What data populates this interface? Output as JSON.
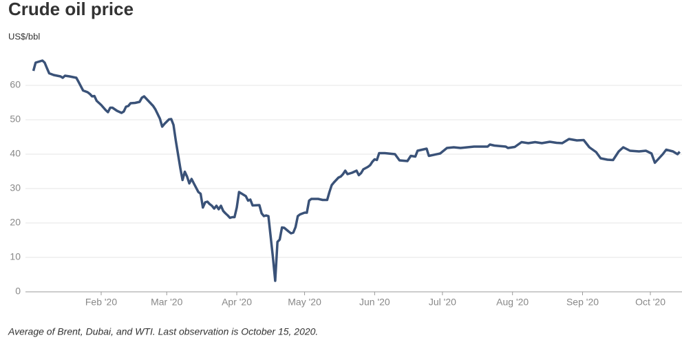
{
  "chart_data": {
    "type": "line",
    "title": "Crude oil price",
    "y_axis_label": "US$/bbl",
    "note": "Average of Brent, Dubai, and WTI. Last observation is October 15, 2020.",
    "x": [
      1,
      2,
      5,
      6,
      7,
      8,
      10,
      13,
      14,
      15,
      17,
      20,
      21,
      23,
      25,
      26,
      27,
      28,
      29,
      31,
      33,
      34,
      35,
      36,
      38,
      40,
      41,
      42,
      43,
      44,
      46,
      48,
      49,
      50,
      52,
      54,
      55,
      57,
      58,
      59,
      61,
      62,
      63,
      64,
      66,
      67,
      68,
      69,
      70,
      71,
      72,
      74,
      75,
      76,
      77,
      78,
      79,
      80,
      81,
      82,
      83,
      84,
      85,
      86,
      87,
      88,
      89,
      90,
      91,
      92,
      94,
      95,
      96,
      97,
      98,
      101,
      102,
      103,
      104,
      105,
      107,
      108,
      109,
      110,
      111,
      112,
      114,
      115,
      116,
      117,
      118,
      119,
      121,
      122,
      123,
      124,
      126,
      127,
      129,
      131,
      132,
      133,
      134,
      135,
      136,
      137,
      138,
      139,
      140,
      142,
      143,
      144,
      145,
      146,
      147,
      149,
      150,
      151,
      152,
      153,
      154,
      156.5,
      161,
      163,
      166.5,
      168,
      170,
      171,
      175,
      176,
      181,
      184,
      187,
      190,
      196,
      202,
      203,
      205,
      210,
      211,
      214,
      217,
      220,
      223,
      226,
      229.5,
      232.5,
      235,
      238,
      241.5,
      244.5,
      247,
      250,
      252,
      255,
      257.5,
      260,
      262,
      265,
      269,
      272,
      274.5,
      276,
      279.5,
      281,
      284,
      286,
      287
    ],
    "series": [
      {
        "name": "Crude oil price",
        "color": "#3a5278",
        "values": [
          64.2,
          66.6,
          67.2,
          66.6,
          65,
          63.5,
          63,
          62.6,
          62.2,
          62.8,
          62.6,
          62.2,
          61,
          58.5,
          58,
          57.5,
          56.8,
          56.9,
          55.5,
          54.3,
          52.8,
          52.2,
          53.5,
          53.5,
          52.6,
          52,
          52.4,
          53.8,
          54,
          54.8,
          54.9,
          55.2,
          56.4,
          56.8,
          55.4,
          54,
          53,
          50.3,
          48,
          48.8,
          50.1,
          50.2,
          48.5,
          44,
          36,
          32.5,
          34.9,
          33.5,
          31.5,
          32.8,
          31.5,
          29,
          28.5,
          24.5,
          26,
          26.2,
          25.5,
          25,
          24.2,
          25,
          24,
          25,
          23.5,
          22.8,
          22.2,
          21.5,
          21.7,
          21.7,
          24.5,
          29,
          28.2,
          27.8,
          26.5,
          26.8,
          25.1,
          25.2,
          22.8,
          22,
          22.2,
          22,
          10,
          3.2,
          14.5,
          15.2,
          18.7,
          18.6,
          17.5,
          17,
          17.2,
          18.8,
          22,
          22.5,
          23,
          23,
          26.5,
          27,
          27,
          27,
          26.7,
          26.7,
          29,
          31,
          31.8,
          32.5,
          33.2,
          33.5,
          34.2,
          35.2,
          34.2,
          34.6,
          34.9,
          35.2,
          33.9,
          34.5,
          35.6,
          36.3,
          36.8,
          37.8,
          38.5,
          38.3,
          40.3,
          40.3,
          40,
          38.2,
          38,
          39.5,
          39.3,
          41,
          41.6,
          39.5,
          40.2,
          41.8,
          42,
          41.8,
          42.2,
          42.2,
          42.8,
          42.5,
          42.2,
          41.8,
          42.1,
          43.5,
          43.2,
          43.5,
          43.2,
          43.6,
          43.3,
          43.2,
          44.4,
          44,
          44.1,
          42,
          40.6,
          38.8,
          38.4,
          38.3,
          40.8,
          42,
          41,
          40.8,
          41,
          40.2,
          37.5,
          40,
          41.3,
          40.8,
          40,
          40.7
        ]
      }
    ],
    "xlim": [
      -2.5,
      288
    ],
    "xticks": [
      {
        "value": 31,
        "label": "Feb '20"
      },
      {
        "value": 60,
        "label": "Mar '20"
      },
      {
        "value": 91,
        "label": "Apr '20"
      },
      {
        "value": 121,
        "label": "May '20"
      },
      {
        "value": 152,
        "label": "Jun '20"
      },
      {
        "value": 182,
        "label": "Jul '20"
      },
      {
        "value": 213,
        "label": "Aug '20"
      },
      {
        "value": 244,
        "label": "Sep '20"
      },
      {
        "value": 274,
        "label": "Oct '20"
      }
    ],
    "ylim": [
      0,
      70
    ],
    "yticks": [
      0,
      10,
      20,
      30,
      40,
      50,
      60
    ],
    "grid": true
  }
}
